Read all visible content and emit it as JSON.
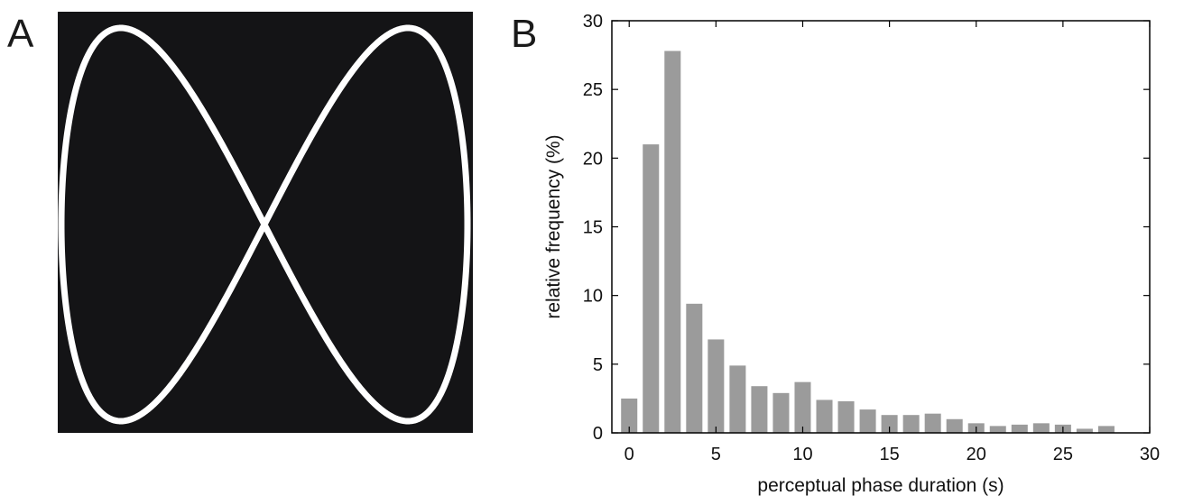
{
  "panels": {
    "a_letter": "A",
    "b_letter": "B"
  },
  "stimulus": {
    "background_color": "#141416",
    "curve_color": "#ffffff",
    "icon": "lissajous-figure-eight"
  },
  "chart_data": {
    "type": "bar",
    "bar_color": "#9b9b9b",
    "xlabel": "perceptual phase duration (s)",
    "ylabel": "relative frequency (%)",
    "xlim": [
      -1,
      30
    ],
    "ylim": [
      0,
      30
    ],
    "xticks": [
      0,
      5,
      10,
      15,
      20,
      25,
      30
    ],
    "yticks": [
      0,
      5,
      10,
      15,
      20,
      25,
      30
    ],
    "bin_width": 1.25,
    "x": [
      0,
      1.25,
      2.5,
      3.75,
      5,
      6.25,
      7.5,
      8.75,
      10,
      11.25,
      12.5,
      13.75,
      15,
      16.25,
      17.5,
      18.75,
      20,
      21.25,
      22.5,
      23.75,
      25,
      26.25,
      27.5
    ],
    "values": [
      2.5,
      21.0,
      27.8,
      9.4,
      6.8,
      4.9,
      3.4,
      2.9,
      3.7,
      2.4,
      2.3,
      1.7,
      1.3,
      1.3,
      1.4,
      1.0,
      0.7,
      0.5,
      0.6,
      0.7,
      0.6,
      0.3,
      0.5
    ],
    "grid": false
  }
}
